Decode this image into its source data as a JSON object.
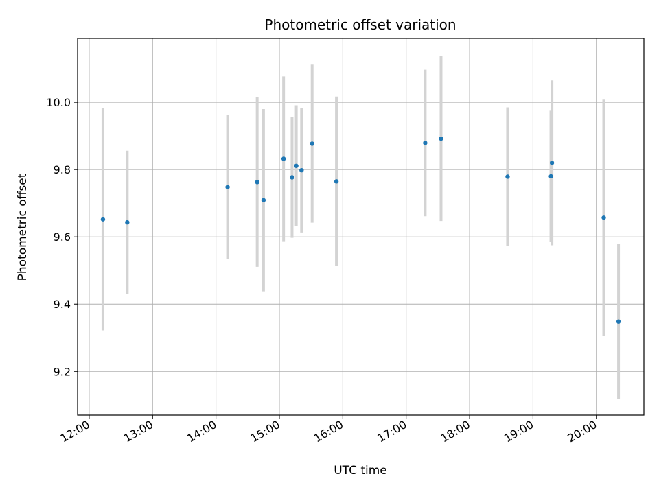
{
  "chart_data": {
    "type": "scatter",
    "title": "Photometric offset variation",
    "xlabel": "UTC time",
    "ylabel": "Photometric offset",
    "x_ticks": [
      "12:00",
      "13:00",
      "14:00",
      "15:00",
      "16:00",
      "17:00",
      "18:00",
      "19:00",
      "20:00"
    ],
    "y_ticks": [
      "9.2",
      "9.4",
      "9.6",
      "9.8",
      "10.0"
    ],
    "xlim": [
      "11:49",
      "20:45"
    ],
    "ylim": [
      9.07,
      10.19
    ],
    "grid": true,
    "point_color": "#1f77b4",
    "errorbar_color": "#d3d3d3",
    "series": [
      {
        "points": [
          {
            "x": "12:13",
            "y": 9.652,
            "err": 0.33
          },
          {
            "x": "12:36",
            "y": 9.643,
            "err": 0.213
          },
          {
            "x": "14:11",
            "y": 9.748,
            "err": 0.214
          },
          {
            "x": "14:39",
            "y": 9.763,
            "err": 0.252
          },
          {
            "x": "14:45",
            "y": 9.709,
            "err": 0.271
          },
          {
            "x": "15:04",
            "y": 9.832,
            "err": 0.245
          },
          {
            "x": "15:12",
            "y": 9.777,
            "err": 0.18
          },
          {
            "x": "15:16",
            "y": 9.811,
            "err": 0.18
          },
          {
            "x": "15:21",
            "y": 9.798,
            "err": 0.185
          },
          {
            "x": "15:31",
            "y": 9.877,
            "err": 0.235
          },
          {
            "x": "15:54",
            "y": 9.765,
            "err": 0.252
          },
          {
            "x": "17:18",
            "y": 9.879,
            "err": 0.218
          },
          {
            "x": "17:33",
            "y": 9.892,
            "err": 0.245
          },
          {
            "x": "18:36",
            "y": 9.779,
            "err": 0.206
          },
          {
            "x": "19:17",
            "y": 9.78,
            "err": 0.195
          },
          {
            "x": "19:18",
            "y": 9.82,
            "err": 0.245
          },
          {
            "x": "20:07",
            "y": 9.657,
            "err": 0.351
          },
          {
            "x": "20:21",
            "y": 9.348,
            "err": 0.23
          }
        ]
      }
    ]
  }
}
